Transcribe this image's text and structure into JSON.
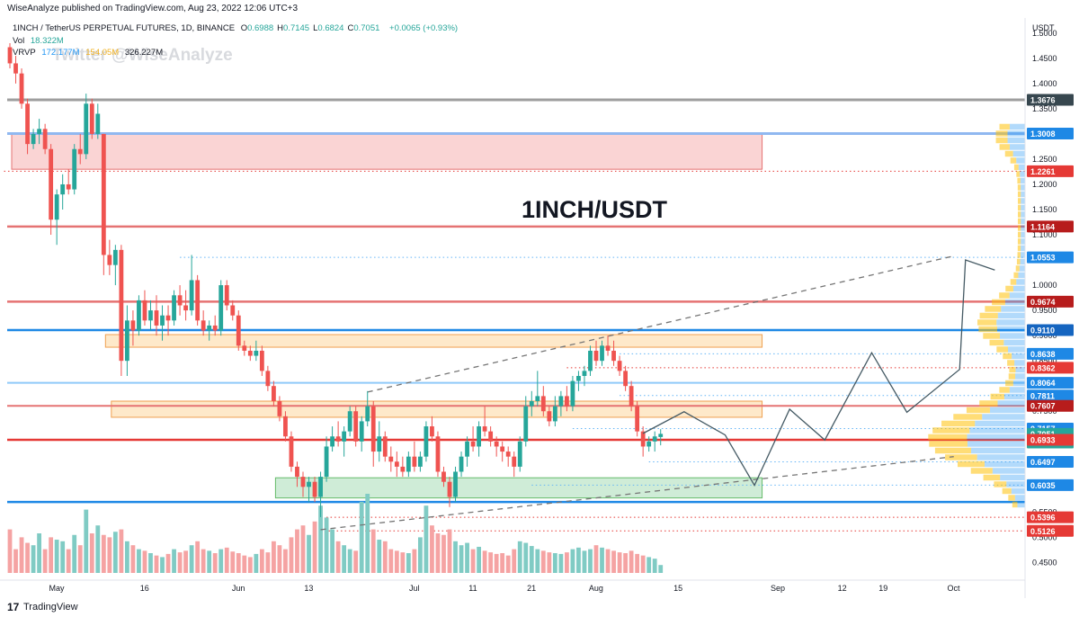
{
  "header": {
    "published": "WiseAnalyze published on TradingView.com, Aug 23, 2022 12:06 UTC+3"
  },
  "legend": {
    "symbol": "1INCH / TetherUS PERPETUAL FUTURES, 1D, BINANCE",
    "ohlc": [
      {
        "k": "O",
        "v": "0.6988"
      },
      {
        "k": "H",
        "v": "0.7145"
      },
      {
        "k": "L",
        "v": "0.6824"
      },
      {
        "k": "C",
        "v": "0.7051"
      }
    ],
    "change": "+0.0065 (+0.93%)",
    "vol_label": "Vol",
    "vol_value": "18.322M",
    "vrvp_label": "VRVP",
    "vrvp_values": [
      "172.177M",
      "154.05M",
      "326.227M"
    ]
  },
  "watermark": "Twitter @WiseAnalyze",
  "annotation": "1INCH/USDT",
  "footer": {
    "logo": "17",
    "brand": "TradingView"
  },
  "colors": {
    "up": "#26a69a",
    "down": "#ef5350",
    "red_line": "#e53935",
    "blue_line": "#1e88e5",
    "pink_zone": "#f8c6c6",
    "orange_zone": "#fde2b8",
    "green_zone": "#bfe6c9",
    "vrvp_up": "#2196f3",
    "vrvp_down": "#ffc107",
    "label_dark_red": "#b71c1c",
    "label_blue": "#1e88e5"
  },
  "chart_data": {
    "type": "candlestick",
    "title": "1INCH / TetherUS PERPETUAL FUTURES, 1D, BINANCE",
    "y_axis_label": "USDT",
    "ylim": [
      0.415,
      1.53
    ],
    "y_ticks": [
      "1.5000",
      "1.4500",
      "1.4000",
      "1.3500",
      "1.3000",
      "1.2500",
      "1.2000",
      "1.1500",
      "1.1000",
      "1.0500",
      "1.0000",
      "0.9500",
      "0.9000",
      "0.8500",
      "0.8000",
      "0.7500",
      "0.7000",
      "0.6500",
      "0.6000",
      "0.5500",
      "0.5000",
      "0.4500"
    ],
    "x_ticks": [
      {
        "label": "May",
        "day": 0
      },
      {
        "label": "16",
        "day": 15
      },
      {
        "label": "Jun",
        "day": 31
      },
      {
        "label": "13",
        "day": 43
      },
      {
        "label": "Jul",
        "day": 61
      },
      {
        "label": "11",
        "day": 71
      },
      {
        "label": "21",
        "day": 81
      },
      {
        "label": "Aug",
        "day": 92
      },
      {
        "label": "15",
        "day": 106
      },
      {
        "label": "Sep",
        "day": 123
      },
      {
        "label": "12",
        "day": 134
      },
      {
        "label": "19",
        "day": 141
      },
      {
        "label": "Oct",
        "day": 153
      }
    ],
    "price_labels": [
      {
        "value": "1.3676",
        "style": "dark"
      },
      {
        "value": "1.3008",
        "style": "blue"
      },
      {
        "value": "1.2261",
        "style": "red"
      },
      {
        "value": "1.1164",
        "style": "darkred"
      },
      {
        "value": "1.0553",
        "style": "blue"
      },
      {
        "value": "0.9674",
        "style": "darkred"
      },
      {
        "value": "0.9110",
        "style": "darkblue"
      },
      {
        "value": "0.8638",
        "style": "blue"
      },
      {
        "value": "0.8362",
        "style": "red"
      },
      {
        "value": "0.8064",
        "style": "blue"
      },
      {
        "value": "0.7811",
        "style": "blue"
      },
      {
        "value": "0.7607",
        "style": "darkred"
      },
      {
        "value": "0.7157",
        "style": "blue"
      },
      {
        "value": "0.7051",
        "style": "teal"
      },
      {
        "value": "14:53:41",
        "style": "teal",
        "price": 0.688
      },
      {
        "value": "0.6933",
        "style": "red"
      },
      {
        "value": "0.6497",
        "style": "blue"
      },
      {
        "value": "0.6035",
        "style": "blue"
      },
      {
        "value": "0.5396",
        "style": "red"
      },
      {
        "value": "0.5126",
        "style": "red"
      }
    ],
    "horizontal_lines": [
      {
        "price": 1.3676,
        "color": "#9e9e9e",
        "width": 3
      },
      {
        "price": 1.3008,
        "color": "#90b8f0",
        "width": 3
      },
      {
        "price": 1.1164,
        "color": "#e57373",
        "width": 2.5
      },
      {
        "price": 0.9674,
        "color": "#e57373",
        "width": 2.5
      },
      {
        "price": 0.911,
        "color": "#1e88e5",
        "width": 2.5
      },
      {
        "price": 0.8064,
        "color": "#90caf9",
        "width": 2
      },
      {
        "price": 0.7607,
        "color": "#e57373",
        "width": 2
      },
      {
        "price": 0.6933,
        "color": "#e53935",
        "width": 2.5
      },
      {
        "price": 0.57,
        "color": "#1e88e5",
        "width": 2.5
      }
    ],
    "dotted_lines": [
      {
        "price": 1.2261,
        "color": "#e53935",
        "from_day": -1
      },
      {
        "price": 1.0553,
        "color": "#64b5f6",
        "from_day": 29
      },
      {
        "price": 0.8638,
        "color": "#64b5f6",
        "from_day": 104
      },
      {
        "price": 0.8362,
        "color": "#e53935",
        "from_day": 95
      },
      {
        "price": 0.7811,
        "color": "#64b5f6",
        "from_day": 104
      },
      {
        "price": 0.7157,
        "color": "#64b5f6",
        "from_day": 96
      },
      {
        "price": 0.6497,
        "color": "#64b5f6",
        "from_day": 109
      },
      {
        "price": 0.6035,
        "color": "#64b5f6",
        "from_day": 89
      },
      {
        "price": 0.5396,
        "color": "#e53935",
        "from_day": 54
      },
      {
        "price": 0.5126,
        "color": "#e53935",
        "from_day": 53
      }
    ],
    "zones": [
      {
        "name": "supply-zone",
        "from_day": 0,
        "to_day": 128,
        "top": 1.3,
        "bottom": 1.23,
        "fill": "#f8c6c6",
        "stroke": "#e57373"
      },
      {
        "name": "resistance-zone",
        "from_day": 16,
        "to_day": 128,
        "top": 0.902,
        "bottom": 0.877,
        "fill": "#fde2b8",
        "stroke": "#f0a050"
      },
      {
        "name": "mid-zone",
        "from_day": 17,
        "to_day": 128,
        "top": 0.77,
        "bottom": 0.738,
        "fill": "#fde2b8",
        "stroke": "#f0a050"
      },
      {
        "name": "demand-zone",
        "from_day": 45,
        "to_day": 128,
        "top": 0.618,
        "bottom": 0.578,
        "fill": "#bfe6c9",
        "stroke": "#66bb6a"
      }
    ],
    "trend_lines": [
      {
        "from": [
          61,
          0.788
        ],
        "to": [
          161,
          1.058
        ],
        "color": "#757575"
      },
      {
        "from": [
          53,
          0.515
        ],
        "to": [
          161,
          0.66
        ],
        "color": "#757575"
      }
    ],
    "projection_path": [
      [
        109,
        0.711
      ],
      [
        116,
        0.75
      ],
      [
        121,
        0.618
      ],
      [
        127,
        0.686
      ],
      [
        132,
        0.702
      ],
      [
        140,
        0.64
      ],
      [
        144,
        0.72
      ],
      [
        151,
        0.704
      ],
      [
        155,
        0.71
      ],
      [
        162,
        0.72
      ],
      [
        170,
        0.7
      ]
    ],
    "projection_path_display": [
      [
        108,
        0.706
      ],
      [
        115,
        0.749
      ],
      [
        122,
        0.703
      ],
      [
        127,
        0.603
      ],
      [
        133,
        0.754
      ],
      [
        139,
        0.693
      ],
      [
        147,
        0.866
      ],
      [
        153,
        0.748
      ],
      [
        162,
        0.833
      ],
      [
        163,
        1.05
      ],
      [
        168,
        1.03
      ]
    ],
    "candles": [
      [
        0,
        1.472,
        1.48,
        1.43,
        1.44
      ],
      [
        1,
        1.44,
        1.455,
        1.4,
        1.42
      ],
      [
        2,
        1.42,
        1.43,
        1.35,
        1.36
      ],
      [
        3,
        1.36,
        1.37,
        1.26,
        1.28
      ],
      [
        4,
        1.28,
        1.31,
        1.27,
        1.3
      ],
      [
        5,
        1.3,
        1.33,
        1.28,
        1.31
      ],
      [
        6,
        1.31,
        1.32,
        1.26,
        1.27
      ],
      [
        7,
        1.27,
        1.28,
        1.1,
        1.13
      ],
      [
        8,
        1.13,
        1.19,
        1.08,
        1.18
      ],
      [
        9,
        1.18,
        1.22,
        1.15,
        1.2
      ],
      [
        10,
        1.2,
        1.23,
        1.18,
        1.19
      ],
      [
        11,
        1.19,
        1.28,
        1.18,
        1.27
      ],
      [
        12,
        1.27,
        1.3,
        1.24,
        1.26
      ],
      [
        13,
        1.26,
        1.38,
        1.25,
        1.36
      ],
      [
        14,
        1.36,
        1.37,
        1.29,
        1.3
      ],
      [
        15,
        1.3,
        1.36,
        1.29,
        1.34
      ],
      [
        16,
        1.3,
        1.3,
        1.02,
        1.06
      ],
      [
        17,
        1.06,
        1.09,
        1.02,
        1.04
      ],
      [
        18,
        1.04,
        1.08,
        1.0,
        1.07
      ],
      [
        19,
        1.07,
        1.08,
        0.82,
        0.85
      ],
      [
        20,
        0.85,
        0.96,
        0.82,
        0.93
      ],
      [
        21,
        0.93,
        0.95,
        0.88,
        0.91
      ],
      [
        22,
        0.91,
        0.98,
        0.9,
        0.97
      ],
      [
        23,
        0.97,
        0.99,
        0.92,
        0.93
      ],
      [
        24,
        0.93,
        0.97,
        0.91,
        0.95
      ],
      [
        25,
        0.95,
        0.98,
        0.9,
        0.92
      ],
      [
        26,
        0.92,
        0.96,
        0.89,
        0.94
      ],
      [
        27,
        0.94,
        0.96,
        0.9,
        0.93
      ],
      [
        28,
        0.93,
        0.99,
        0.92,
        0.98
      ],
      [
        29,
        0.98,
        1.0,
        0.94,
        0.96
      ],
      [
        30,
        0.96,
        0.99,
        0.93,
        0.95
      ],
      [
        31,
        0.95,
        1.06,
        0.94,
        1.01
      ],
      [
        32,
        1.01,
        1.02,
        0.92,
        0.93
      ],
      [
        33,
        0.93,
        0.95,
        0.9,
        0.91
      ],
      [
        34,
        0.91,
        0.93,
        0.89,
        0.92
      ],
      [
        35,
        0.92,
        0.94,
        0.9,
        0.91
      ],
      [
        36,
        0.91,
        1.01,
        0.9,
        1.0
      ],
      [
        37,
        1.0,
        1.01,
        0.95,
        0.96
      ],
      [
        38,
        0.96,
        0.97,
        0.93,
        0.94
      ],
      [
        39,
        0.94,
        0.95,
        0.87,
        0.88
      ],
      [
        40,
        0.88,
        0.89,
        0.86,
        0.87
      ],
      [
        41,
        0.87,
        0.88,
        0.85,
        0.86
      ],
      [
        42,
        0.86,
        0.89,
        0.85,
        0.87
      ],
      [
        43,
        0.87,
        0.88,
        0.82,
        0.83
      ],
      [
        44,
        0.83,
        0.84,
        0.79,
        0.8
      ],
      [
        45,
        0.8,
        0.81,
        0.76,
        0.77
      ],
      [
        46,
        0.77,
        0.78,
        0.73,
        0.74
      ],
      [
        47,
        0.74,
        0.75,
        0.69,
        0.7
      ],
      [
        48,
        0.7,
        0.71,
        0.63,
        0.64
      ],
      [
        49,
        0.64,
        0.65,
        0.6,
        0.62
      ],
      [
        50,
        0.62,
        0.63,
        0.58,
        0.6
      ],
      [
        51,
        0.6,
        0.62,
        0.57,
        0.61
      ],
      [
        52,
        0.61,
        0.62,
        0.57,
        0.58
      ],
      [
        53,
        0.58,
        0.63,
        0.54,
        0.62
      ],
      [
        54,
        0.62,
        0.7,
        0.61,
        0.68
      ],
      [
        55,
        0.68,
        0.72,
        0.67,
        0.7
      ],
      [
        56,
        0.7,
        0.73,
        0.68,
        0.69
      ],
      [
        57,
        0.69,
        0.72,
        0.66,
        0.71
      ],
      [
        58,
        0.71,
        0.76,
        0.7,
        0.75
      ],
      [
        59,
        0.75,
        0.76,
        0.68,
        0.69
      ],
      [
        60,
        0.69,
        0.74,
        0.67,
        0.73
      ],
      [
        61,
        0.73,
        0.79,
        0.72,
        0.76
      ],
      [
        62,
        0.76,
        0.77,
        0.64,
        0.67
      ],
      [
        63,
        0.67,
        0.73,
        0.65,
        0.7
      ],
      [
        64,
        0.7,
        0.71,
        0.65,
        0.66
      ],
      [
        65,
        0.66,
        0.68,
        0.63,
        0.65
      ],
      [
        66,
        0.65,
        0.67,
        0.62,
        0.64
      ],
      [
        67,
        0.64,
        0.66,
        0.62,
        0.63
      ],
      [
        68,
        0.63,
        0.67,
        0.62,
        0.66
      ],
      [
        69,
        0.66,
        0.69,
        0.63,
        0.64
      ],
      [
        70,
        0.64,
        0.67,
        0.63,
        0.66
      ],
      [
        71,
        0.66,
        0.73,
        0.65,
        0.72
      ],
      [
        72,
        0.72,
        0.74,
        0.69,
        0.7
      ],
      [
        73,
        0.7,
        0.71,
        0.62,
        0.63
      ],
      [
        74,
        0.63,
        0.64,
        0.6,
        0.61
      ],
      [
        75,
        0.61,
        0.62,
        0.56,
        0.58
      ],
      [
        76,
        0.58,
        0.64,
        0.57,
        0.63
      ],
      [
        77,
        0.63,
        0.67,
        0.62,
        0.66
      ],
      [
        78,
        0.66,
        0.7,
        0.64,
        0.69
      ],
      [
        79,
        0.69,
        0.72,
        0.67,
        0.68
      ],
      [
        80,
        0.68,
        0.73,
        0.66,
        0.72
      ],
      [
        81,
        0.72,
        0.76,
        0.7,
        0.71
      ],
      [
        82,
        0.71,
        0.72,
        0.68,
        0.69
      ],
      [
        83,
        0.69,
        0.7,
        0.66,
        0.68
      ],
      [
        84,
        0.68,
        0.69,
        0.65,
        0.67
      ],
      [
        85,
        0.67,
        0.68,
        0.64,
        0.66
      ],
      [
        86,
        0.66,
        0.67,
        0.62,
        0.64
      ],
      [
        87,
        0.64,
        0.7,
        0.63,
        0.69
      ],
      [
        88,
        0.69,
        0.78,
        0.68,
        0.76
      ],
      [
        89,
        0.76,
        0.79,
        0.74,
        0.77
      ],
      [
        90,
        0.77,
        0.83,
        0.76,
        0.78
      ],
      [
        91,
        0.78,
        0.8,
        0.74,
        0.75
      ],
      [
        92,
        0.75,
        0.76,
        0.72,
        0.73
      ],
      [
        93,
        0.73,
        0.78,
        0.72,
        0.76
      ],
      [
        94,
        0.76,
        0.79,
        0.74,
        0.78
      ],
      [
        95,
        0.78,
        0.8,
        0.75,
        0.76
      ],
      [
        96,
        0.76,
        0.82,
        0.75,
        0.81
      ],
      [
        97,
        0.81,
        0.83,
        0.79,
        0.82
      ],
      [
        98,
        0.82,
        0.84,
        0.8,
        0.83
      ],
      [
        99,
        0.83,
        0.88,
        0.82,
        0.87
      ],
      [
        100,
        0.87,
        0.89,
        0.84,
        0.85
      ],
      [
        101,
        0.85,
        0.89,
        0.84,
        0.88
      ],
      [
        102,
        0.88,
        0.9,
        0.86,
        0.87
      ],
      [
        103,
        0.87,
        0.89,
        0.84,
        0.85
      ],
      [
        104,
        0.85,
        0.86,
        0.82,
        0.83
      ],
      [
        105,
        0.83,
        0.84,
        0.79,
        0.8
      ],
      [
        106,
        0.8,
        0.81,
        0.75,
        0.76
      ],
      [
        107,
        0.76,
        0.77,
        0.7,
        0.71
      ],
      [
        108,
        0.71,
        0.72,
        0.66,
        0.68
      ],
      [
        109,
        0.68,
        0.7,
        0.67,
        0.69
      ],
      [
        110,
        0.69,
        0.71,
        0.67,
        0.7
      ],
      [
        111,
        0.6988,
        0.7145,
        0.6824,
        0.7051
      ]
    ],
    "volume": [
      0.55,
      0.3,
      0.45,
      0.38,
      0.35,
      0.5,
      0.3,
      0.45,
      0.42,
      0.4,
      0.3,
      0.48,
      0.35,
      0.8,
      0.5,
      0.6,
      0.48,
      0.45,
      0.52,
      0.55,
      0.4,
      0.35,
      0.3,
      0.28,
      0.25,
      0.22,
      0.2,
      0.24,
      0.3,
      0.26,
      0.28,
      0.35,
      0.4,
      0.3,
      0.28,
      0.25,
      0.3,
      0.32,
      0.27,
      0.25,
      0.22,
      0.2,
      0.24,
      0.3,
      0.26,
      0.4,
      0.35,
      0.3,
      0.45,
      0.55,
      0.6,
      0.48,
      0.65,
      0.85,
      0.7,
      0.55,
      0.4,
      0.35,
      0.3,
      0.28,
      0.9,
      1.0,
      0.55,
      0.42,
      0.4,
      0.3,
      0.28,
      0.26,
      0.25,
      0.3,
      0.45,
      0.85,
      0.6,
      0.5,
      0.48,
      0.55,
      0.4,
      0.35,
      0.38,
      0.3,
      0.33,
      0.28,
      0.26,
      0.24,
      0.25,
      0.22,
      0.3,
      0.4,
      0.38,
      0.34,
      0.3,
      0.28,
      0.26,
      0.25,
      0.24,
      0.26,
      0.3,
      0.32,
      0.28,
      0.3,
      0.35,
      0.32,
      0.3,
      0.28,
      0.26,
      0.25,
      0.28,
      0.24,
      0.22,
      0.2,
      0.18,
      0.1
    ]
  }
}
